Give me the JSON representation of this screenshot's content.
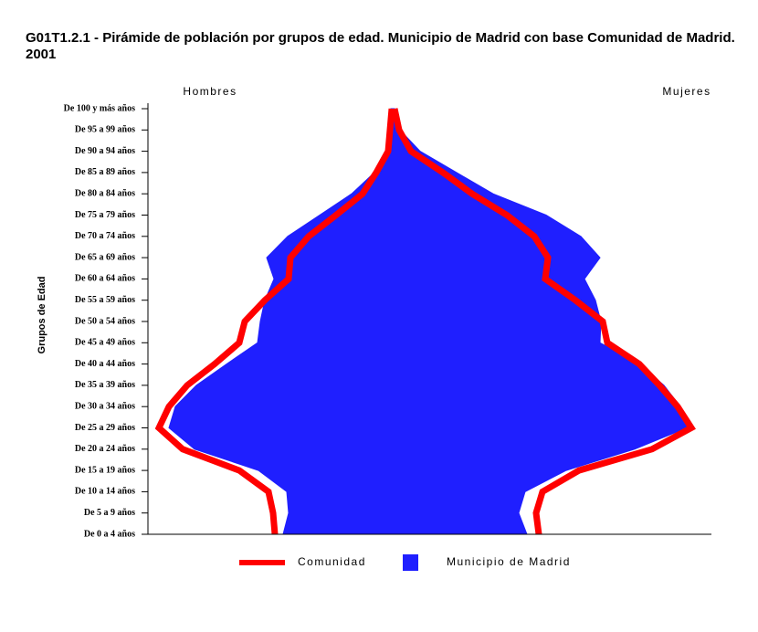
{
  "chart_data": {
    "type": "pyramid",
    "title": "G01T1.2.1 - Pirámide de población por grupos de edad. Municipio de Madrid con base Comunidad de Madrid. 2001",
    "y_axis_label": "Grupos   de   Edad",
    "left_label": "Hombres",
    "right_label": "Mujeres",
    "categories": [
      "De 0 a 4 años",
      "De 5 a 9 años",
      "De 10 a 14 años",
      "De 15 a 19 años",
      "De 20 a 24 años",
      "De 25 a 29 años",
      "De 30 a 34 años",
      "De 35 a 39 años",
      "De 40 a 44 años",
      "De 45 a 49 años",
      "De 50 a 54 años",
      "De 55 a 59 años",
      "De 60 a 64 años",
      "De 65 a 69 años",
      "De 70 a 74 años",
      "De 75 a 79 años",
      "De 80 a 84 años",
      "De 85 a 89 años",
      "De 90 a 94 años",
      "De 95 a 99 años",
      "De 100 y más años"
    ],
    "xlim": [
      -267,
      350
    ],
    "series": [
      {
        "name": "Comunidad",
        "color": "#ff0000",
        "style": "line",
        "men": [
          128,
          130,
          135,
          167,
          229,
          255,
          244,
          224,
          194,
          167,
          161,
          139,
          113,
          111,
          91,
          61,
          32,
          17,
          4,
          2,
          0
        ],
        "women": [
          161,
          158,
          165,
          205,
          285,
          328,
          313,
          293,
          271,
          236,
          231,
          201,
          168,
          171,
          156,
          126,
          88,
          56,
          21,
          8,
          3
        ]
      },
      {
        "name": "Municipio de Madrid",
        "color": "#1f1fff",
        "style": "area",
        "men": [
          119,
          113,
          115,
          146,
          216,
          244,
          237,
          214,
          181,
          147,
          144,
          139,
          129,
          137,
          114,
          79,
          44,
          19,
          5,
          2,
          1
        ],
        "women": [
          148,
          139,
          146,
          191,
          266,
          323,
          316,
          298,
          271,
          228,
          229,
          223,
          211,
          228,
          207,
          169,
          111,
          71,
          31,
          9,
          3
        ]
      }
    ]
  }
}
